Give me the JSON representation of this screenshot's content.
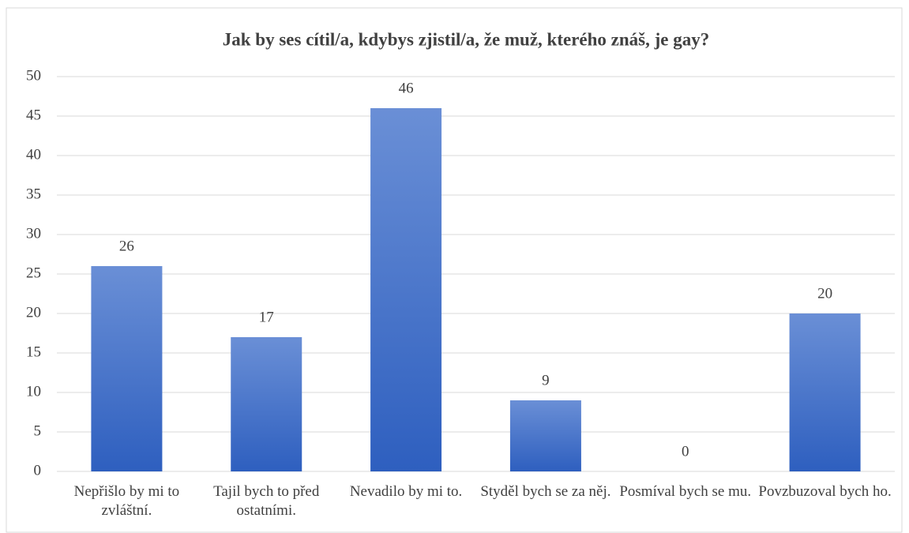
{
  "chart_data": {
    "type": "bar",
    "title": "Jak by ses cítil/a, kdybys zjistil/a, že muž, kterého znáš, je gay?",
    "categories": [
      "Nepřišlo by mi to zvláštní.",
      "Tajil bych to před ostatními.",
      "Nevadilo by mi to.",
      "Styděl bych se za něj.",
      "Posmíval bych se mu.",
      "Povzbuzoval bych ho."
    ],
    "values": [
      26,
      17,
      46,
      9,
      0,
      20
    ],
    "color": "#4472c4",
    "ylim": [
      0,
      50
    ],
    "yticks": [
      0,
      5,
      10,
      15,
      20,
      25,
      30,
      35,
      40,
      45,
      50
    ],
    "grid": true
  }
}
